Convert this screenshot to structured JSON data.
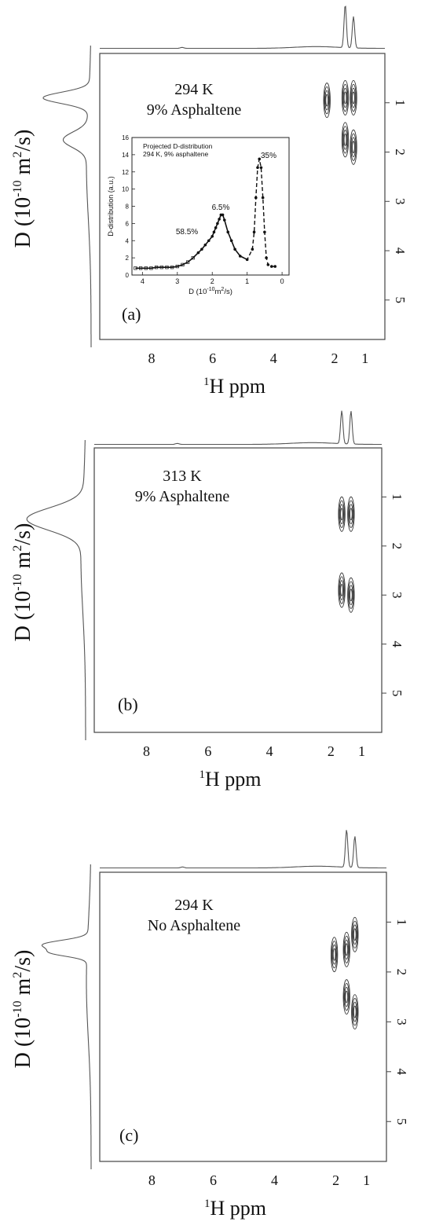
{
  "chart_data": [
    {
      "type": "contour",
      "panel_label": "(a)",
      "annotation": [
        "294 K",
        "9% Asphaltene"
      ],
      "xlabel": "ppm",
      "xlabel_super": "1",
      "xlabel_nucleus": "H",
      "ylabel_prefix": "D (10",
      "ylabel_exp": "-10",
      "ylabel_unit": " m",
      "ylabel_unit_exp": "2",
      "ylabel_suffix": "/s)",
      "xlim": [
        9.7,
        0.35
      ],
      "ylim": [
        0,
        5.8
      ],
      "x_ticks": [
        "8",
        "6",
        "4",
        "2",
        "1"
      ],
      "y_ticks": [
        "1",
        "2",
        "3",
        "4",
        "5"
      ],
      "cross_peaks": [
        {
          "x": 1.65,
          "y": 0.9
        },
        {
          "x": 1.38,
          "y": 0.9
        },
        {
          "x": 1.65,
          "y": 1.75
        },
        {
          "x": 1.38,
          "y": 1.9
        },
        {
          "x": 2.25,
          "y": 0.95
        }
      ],
      "top_projection_peaks_ppm": [
        1.65,
        1.38
      ],
      "left_projection_peaks_D": [
        0.9,
        1.75
      ],
      "inset": {
        "type": "scatter",
        "title": [
          "Projected D-distribution",
          "294 K, 9% asphaltene"
        ],
        "xlabel": "D (10",
        "xlabel_exp": "-10",
        "xlabel_unit": "m",
        "xlabel_unit_exp": "2",
        "xlabel_suffix": "/s)",
        "ylabel": "D-distribution (a.u.)",
        "xlim": [
          4.3,
          -0.2
        ],
        "ylim": [
          0,
          16
        ],
        "x_ticks": [
          "4",
          "3",
          "2",
          "1",
          "0"
        ],
        "y_ticks": [
          "0",
          "2",
          "4",
          "6",
          "8",
          "10",
          "12",
          "14",
          "16"
        ],
        "labels": [
          "58.5%",
          "6.5%",
          "35%"
        ],
        "points_x": [
          4.2,
          4.05,
          3.9,
          3.75,
          3.6,
          3.45,
          3.3,
          3.15,
          3.0,
          2.85,
          2.7,
          2.55,
          2.4,
          2.3,
          2.2,
          2.1,
          2.0,
          1.95,
          1.9,
          1.85,
          1.8,
          1.75,
          1.7,
          1.65,
          1.55,
          1.45,
          1.35,
          1.2,
          1.0,
          0.85,
          0.8,
          0.75,
          0.7,
          0.65,
          0.6,
          0.55,
          0.5,
          0.45,
          0.4,
          0.3,
          0.2
        ],
        "points_y": [
          0.8,
          0.8,
          0.8,
          0.8,
          0.9,
          0.9,
          0.9,
          0.9,
          1.0,
          1.2,
          1.5,
          2.0,
          2.6,
          3.0,
          3.5,
          4.0,
          4.5,
          5.0,
          5.5,
          6.0,
          6.5,
          7.0,
          7.0,
          6.4,
          5.0,
          4.0,
          3.0,
          2.2,
          1.8,
          3.0,
          5.0,
          9.0,
          12.5,
          13.5,
          12.5,
          9.0,
          5.0,
          2.0,
          1.2,
          1.0,
          1.0
        ]
      }
    },
    {
      "type": "contour",
      "panel_label": "(b)",
      "annotation": [
        "313 K",
        "9% Asphaltene"
      ],
      "xlabel": "ppm",
      "xlabel_super": "1",
      "xlabel_nucleus": "H",
      "ylabel_prefix": "D (10",
      "ylabel_exp": "-10",
      "ylabel_unit": " m",
      "ylabel_unit_exp": "2",
      "ylabel_suffix": "/s)",
      "xlim": [
        9.7,
        0.35
      ],
      "ylim": [
        0,
        5.8
      ],
      "x_ticks": [
        "8",
        "6",
        "4",
        "2",
        "1"
      ],
      "y_ticks": [
        "1",
        "2",
        "3",
        "4",
        "5"
      ],
      "cross_peaks": [
        {
          "x": 1.65,
          "y": 1.35
        },
        {
          "x": 1.35,
          "y": 1.35
        },
        {
          "x": 1.65,
          "y": 2.9
        },
        {
          "x": 1.35,
          "y": 3.0
        }
      ],
      "top_projection_peaks_ppm": [
        1.65,
        1.35
      ],
      "left_projection_peaks_D": [
        1.45
      ]
    },
    {
      "type": "contour",
      "panel_label": "(c)",
      "annotation": [
        "294 K",
        "No Asphaltene"
      ],
      "xlabel": "ppm",
      "xlabel_super": "1",
      "xlabel_nucleus": "H",
      "ylabel_prefix": "D (10",
      "ylabel_exp": "-10",
      "ylabel_unit": " m",
      "ylabel_unit_exp": "2",
      "ylabel_suffix": "/s)",
      "xlim": [
        9.7,
        0.35
      ],
      "ylim": [
        0,
        5.8
      ],
      "x_ticks": [
        "8",
        "6",
        "4",
        "2",
        "1"
      ],
      "y_ticks": [
        "1",
        "2",
        "3",
        "4",
        "5"
      ],
      "cross_peaks": [
        {
          "x": 1.65,
          "y": 1.55
        },
        {
          "x": 1.38,
          "y": 1.25
        },
        {
          "x": 1.65,
          "y": 2.5
        },
        {
          "x": 1.38,
          "y": 2.8
        },
        {
          "x": 2.05,
          "y": 1.65
        }
      ],
      "top_projection_peaks_ppm": [
        1.65,
        1.38
      ],
      "left_projection_peaks_D": [
        1.45,
        1.6
      ]
    }
  ]
}
